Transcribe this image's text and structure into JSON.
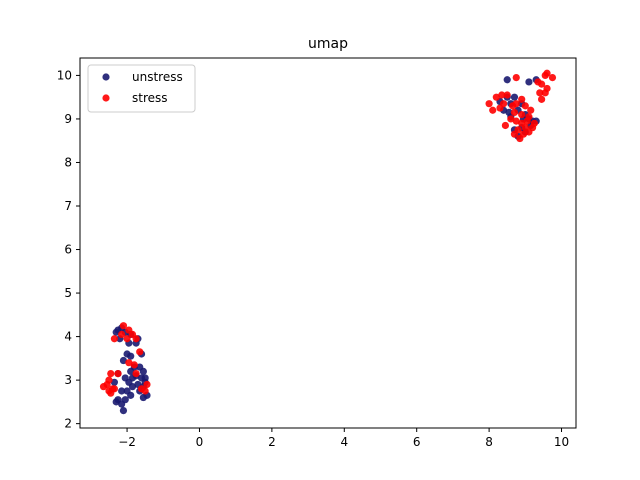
{
  "chart_data": {
    "type": "scatter",
    "title": "umap",
    "xlabel": "",
    "ylabel": "",
    "xlim": [
      -3.3,
      10.4
    ],
    "ylim": [
      1.9,
      10.4
    ],
    "xticks": [
      -2,
      0,
      2,
      4,
      6,
      8,
      10
    ],
    "yticks": [
      2,
      3,
      4,
      5,
      6,
      7,
      8,
      9,
      10
    ],
    "xtick_labels": [
      "−2",
      "0",
      "2",
      "4",
      "6",
      "8",
      "10"
    ],
    "ytick_labels": [
      "2",
      "3",
      "4",
      "5",
      "6",
      "7",
      "8",
      "9",
      "10"
    ],
    "grid": false,
    "legend_position": "upper-left",
    "series": [
      {
        "name": "unstress",
        "color": "#191970",
        "points": [
          [
            -2.25,
            4.15
          ],
          [
            -2.15,
            4.2
          ],
          [
            -2.05,
            4.1
          ],
          [
            -2.2,
            3.95
          ],
          [
            -1.9,
            4.05
          ],
          [
            -2.3,
            4.1
          ],
          [
            -1.95,
            3.85
          ],
          [
            -1.75,
            3.85
          ],
          [
            -1.7,
            3.95
          ],
          [
            -2.0,
            3.6
          ],
          [
            -1.9,
            3.55
          ],
          [
            -2.1,
            3.45
          ],
          [
            -1.6,
            3.6
          ],
          [
            -1.65,
            3.3
          ],
          [
            -1.55,
            3.2
          ],
          [
            -1.8,
            3.3
          ],
          [
            -1.9,
            3.2
          ],
          [
            -2.05,
            3.05
          ],
          [
            -1.85,
            3.05
          ],
          [
            -1.6,
            3.05
          ],
          [
            -1.5,
            2.95
          ],
          [
            -1.7,
            2.9
          ],
          [
            -1.85,
            2.85
          ],
          [
            -1.95,
            2.95
          ],
          [
            -1.65,
            2.75
          ],
          [
            -1.55,
            2.6
          ],
          [
            -1.45,
            2.65
          ],
          [
            -1.9,
            2.65
          ],
          [
            -2.05,
            2.55
          ],
          [
            -2.25,
            2.55
          ],
          [
            -2.15,
            2.45
          ],
          [
            -2.3,
            2.5
          ],
          [
            -2.1,
            2.3
          ],
          [
            -2.0,
            2.75
          ],
          [
            -2.15,
            2.75
          ],
          [
            -2.35,
            2.95
          ],
          [
            -2.25,
            3.15
          ],
          [
            -1.75,
            3.1
          ],
          [
            -1.5,
            3.05
          ],
          [
            -1.55,
            2.85
          ],
          [
            8.5,
            9.9
          ],
          [
            8.3,
            9.4
          ],
          [
            8.5,
            9.5
          ],
          [
            8.6,
            9.35
          ],
          [
            8.7,
            9.5
          ],
          [
            8.9,
            9.35
          ],
          [
            8.4,
            9.2
          ],
          [
            8.6,
            9.05
          ],
          [
            8.8,
            9.2
          ],
          [
            9.0,
            9.1
          ],
          [
            9.1,
            9.0
          ],
          [
            9.2,
            8.95
          ],
          [
            9.3,
            8.95
          ],
          [
            8.9,
            8.8
          ],
          [
            8.7,
            8.75
          ],
          [
            9.0,
            8.7
          ],
          [
            8.8,
            8.6
          ],
          [
            9.1,
            9.85
          ],
          [
            9.3,
            9.9
          ],
          [
            8.55,
            9.15
          ],
          [
            9.15,
            8.85
          ],
          [
            8.95,
            9.0
          ]
        ]
      },
      {
        "name": "stress",
        "color": "#ff0000",
        "points": [
          [
            -2.1,
            4.25
          ],
          [
            -1.95,
            4.15
          ],
          [
            -1.85,
            4.05
          ],
          [
            -2.15,
            4.05
          ],
          [
            -2.0,
            3.95
          ],
          [
            -2.35,
            3.95
          ],
          [
            -1.75,
            3.95
          ],
          [
            -1.65,
            3.65
          ],
          [
            -1.8,
            3.35
          ],
          [
            -1.95,
            3.4
          ],
          [
            -1.75,
            3.15
          ],
          [
            -2.25,
            3.15
          ],
          [
            -1.45,
            2.9
          ],
          [
            -1.5,
            2.75
          ],
          [
            -1.6,
            2.8
          ],
          [
            -2.45,
            3.15
          ],
          [
            -2.5,
            3.0
          ],
          [
            -2.55,
            2.9
          ],
          [
            -2.65,
            2.85
          ],
          [
            -2.4,
            2.8
          ],
          [
            -2.5,
            2.75
          ],
          [
            -2.45,
            2.7
          ],
          [
            -2.35,
            2.8
          ],
          [
            8.75,
            9.95
          ],
          [
            9.55,
            10.0
          ],
          [
            9.6,
            10.05
          ],
          [
            9.75,
            9.95
          ],
          [
            9.35,
            9.85
          ],
          [
            9.45,
            9.8
          ],
          [
            9.6,
            9.7
          ],
          [
            9.4,
            9.6
          ],
          [
            9.55,
            9.6
          ],
          [
            9.45,
            9.45
          ],
          [
            8.2,
            9.5
          ],
          [
            8.35,
            9.55
          ],
          [
            8.5,
            9.55
          ],
          [
            8.0,
            9.35
          ],
          [
            8.1,
            9.2
          ],
          [
            8.3,
            9.25
          ],
          [
            8.4,
            9.35
          ],
          [
            8.65,
            9.3
          ],
          [
            8.75,
            9.35
          ],
          [
            8.9,
            9.45
          ],
          [
            8.7,
            9.15
          ],
          [
            8.9,
            9.1
          ],
          [
            9.0,
            9.3
          ],
          [
            9.15,
            9.2
          ],
          [
            9.1,
            9.05
          ],
          [
            9.25,
            8.9
          ],
          [
            8.6,
            9.0
          ],
          [
            8.75,
            8.95
          ],
          [
            8.9,
            8.9
          ],
          [
            8.8,
            8.75
          ],
          [
            9.0,
            8.8
          ],
          [
            9.1,
            8.7
          ],
          [
            9.2,
            8.8
          ],
          [
            8.45,
            8.85
          ],
          [
            8.85,
            8.55
          ],
          [
            8.7,
            8.65
          ],
          [
            9.05,
            8.95
          ],
          [
            8.95,
            8.65
          ]
        ]
      }
    ]
  }
}
